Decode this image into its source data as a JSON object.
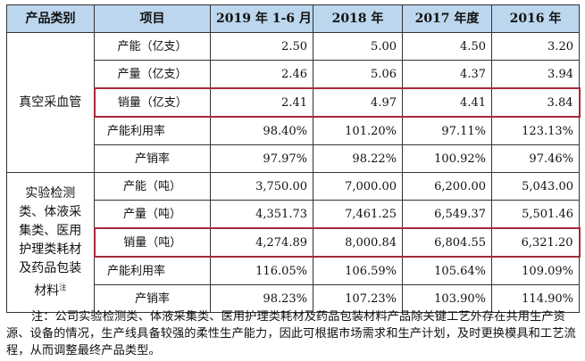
{
  "headers": [
    "产品类别",
    "项目",
    "2019 年 1-6 月",
    "2018 年",
    "2017 年度",
    "2016 年"
  ],
  "groups": [
    {
      "category": "真空采血管",
      "category_sup": "",
      "rows": [
        {
          "item": "产能（亿支）",
          "values": [
            "2.50",
            "5.00",
            "4.50",
            "3.20"
          ]
        },
        {
          "item": "产量（亿支）",
          "values": [
            "2.46",
            "5.06",
            "4.37",
            "3.94"
          ]
        },
        {
          "item": "销量（亿支）",
          "values": [
            "2.41",
            "4.97",
            "4.41",
            "3.84"
          ]
        },
        {
          "item": "产能利用率",
          "values": [
            "98.40%",
            "101.20%",
            "97.11%",
            "123.13%"
          ]
        },
        {
          "item": "产销率",
          "values": [
            "97.97%",
            "98.22%",
            "100.92%",
            "97.46%"
          ]
        }
      ]
    },
    {
      "category": "实验检测类、体液采集类、医用护理类耗材及药品包装材料",
      "category_sup": "注",
      "rows": [
        {
          "item": "产能（吨）",
          "values": [
            "3,750.00",
            "7,000.00",
            "6,200.00",
            "5,043.00"
          ]
        },
        {
          "item": "产量（吨）",
          "values": [
            "4,351.73",
            "7,461.25",
            "6,549.37",
            "5,501.46"
          ]
        },
        {
          "item": "销量（吨）",
          "values": [
            "4,274.89",
            "8,000.84",
            "6,804.55",
            "6,321.20"
          ]
        },
        {
          "item": "产能利用率",
          "values": [
            "116.05%",
            "106.59%",
            "105.64%",
            "109.09%"
          ]
        },
        {
          "item": "产销率",
          "values": [
            "98.23%",
            "107.23%",
            "103.90%",
            "114.90%"
          ]
        }
      ]
    }
  ],
  "note": "注：公司实验检测类、体液采集类、医用护理类耗材及药品包装材料产品除关键工艺外存在共用生产资源、设备的情况，生产线具备较强的柔性生产能力，因此可根据市场需求和生产计划，及时更换模具和工艺流程，从而调整最终产品类型。"
}
